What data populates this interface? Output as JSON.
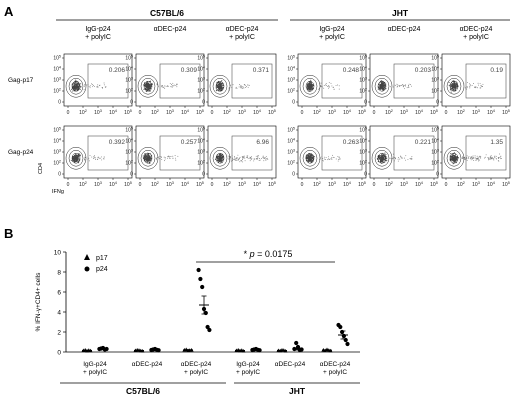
{
  "panelA": {
    "letter": "A",
    "groups": [
      {
        "label": "C57BL/6",
        "conditions": [
          "IgG-p24\n+ polyIC",
          "αDEC-p24",
          "αDEC-p24\n+ polyIC"
        ]
      },
      {
        "label": "JHT",
        "conditions": [
          "IgG-p24\n+ polyIC",
          "αDEC-p24",
          "αDEC-p24\n+ polyIC"
        ]
      }
    ],
    "rows": [
      {
        "label": "Gag-p17",
        "values": [
          "0.206",
          "0.309",
          "0.371",
          "0.248",
          "0.203",
          "0.19"
        ]
      },
      {
        "label": "Gag-p24",
        "values": [
          "0.392",
          "0.257",
          "6.96",
          "0.263",
          "0.221",
          "1.35"
        ]
      }
    ],
    "y_ticks": [
      "10^5",
      "10^4",
      "10^3",
      "10^2",
      "0"
    ],
    "x_ticks": [
      "0",
      "10^2",
      "10^3",
      "10^4",
      "10^5"
    ],
    "y_axis_label": "CD4",
    "x_axis_label": "IFNg"
  },
  "panelB": {
    "letter": "B",
    "ylabel": "% IFN-γ+CD4+ cells",
    "pvalue_prefix": "* ",
    "pvalue_p": "p",
    "pvalue_rest": " = 0.0175",
    "legend": [
      {
        "marker": "triangle",
        "label": "p17"
      },
      {
        "marker": "circle",
        "label": "p24"
      }
    ],
    "categories": [
      "IgG-p24\n+ polyIC",
      "αDEC-p24",
      "αDEC-p24\n+ polyIC",
      "IgG-p24\n+ polyIC",
      "αDEC-p24",
      "αDEC-p24\n+ polyIC"
    ],
    "group_labels": [
      "C57BL/6",
      "JHT"
    ]
  },
  "chart_data": {
    "type": "scatter",
    "title": "",
    "xlabel": "",
    "ylabel": "% IFN-γ+CD4+ cells",
    "ylim": [
      0,
      10
    ],
    "y_ticks": [
      0,
      2,
      4,
      6,
      8,
      10
    ],
    "categories": [
      "IgG-p24 + polyIC",
      "αDEC-p24",
      "αDEC-p24 + polyIC",
      "IgG-p24 + polyIC",
      "αDEC-p24",
      "αDEC-p24 + polyIC"
    ],
    "series": [
      {
        "name": "p17",
        "values": [
          [
            0.15,
            0.2,
            0.1,
            0.18,
            0.12
          ],
          [
            0.15,
            0.2,
            0.18,
            0.12,
            0.1
          ],
          [
            0.2,
            0.25,
            0.15,
            0.18,
            0.2
          ],
          [
            0.15,
            0.2,
            0.12,
            0.18,
            0.1
          ],
          [
            0.15,
            0.12,
            0.2,
            0.18,
            0.1
          ],
          [
            0.2,
            0.15,
            0.25,
            0.18,
            0.12
          ]
        ]
      },
      {
        "name": "p24",
        "values": [
          [
            0.3,
            0.35,
            0.4,
            0.25,
            0.3
          ],
          [
            0.2,
            0.25,
            0.3,
            0.22,
            0.18
          ],
          [
            8.2,
            7.3,
            6.5,
            4.3,
            3.9,
            2.5,
            2.2
          ],
          [
            0.2,
            0.25,
            0.3,
            0.22,
            0.18
          ],
          [
            0.3,
            0.9,
            0.5,
            0.2,
            0.25
          ],
          [
            2.7,
            2.5,
            2.0,
            1.6,
            1.2,
            0.8
          ]
        ]
      }
    ],
    "mean_sem": [
      {
        "p17": [
          0.15,
          0.04
        ],
        "p24": [
          0.32,
          0.05
        ]
      },
      {
        "p17": [
          0.15,
          0.04
        ],
        "p24": [
          0.23,
          0.04
        ]
      },
      {
        "p17": [
          0.2,
          0.04
        ],
        "p24": [
          4.7,
          0.9
        ]
      },
      {
        "p17": [
          0.15,
          0.04
        ],
        "p24": [
          0.23,
          0.04
        ]
      },
      {
        "p17": [
          0.15,
          0.04
        ],
        "p24": [
          0.3,
          0.1
        ]
      },
      {
        "p17": [
          0.18,
          0.04
        ],
        "p24": [
          1.7,
          0.4
        ]
      }
    ],
    "annotation": "* p = 0.0175",
    "legend_position": "top-left",
    "grid": false
  },
  "colors": {
    "ink": "#000000",
    "dots": "#333333",
    "gate": "#555555"
  }
}
